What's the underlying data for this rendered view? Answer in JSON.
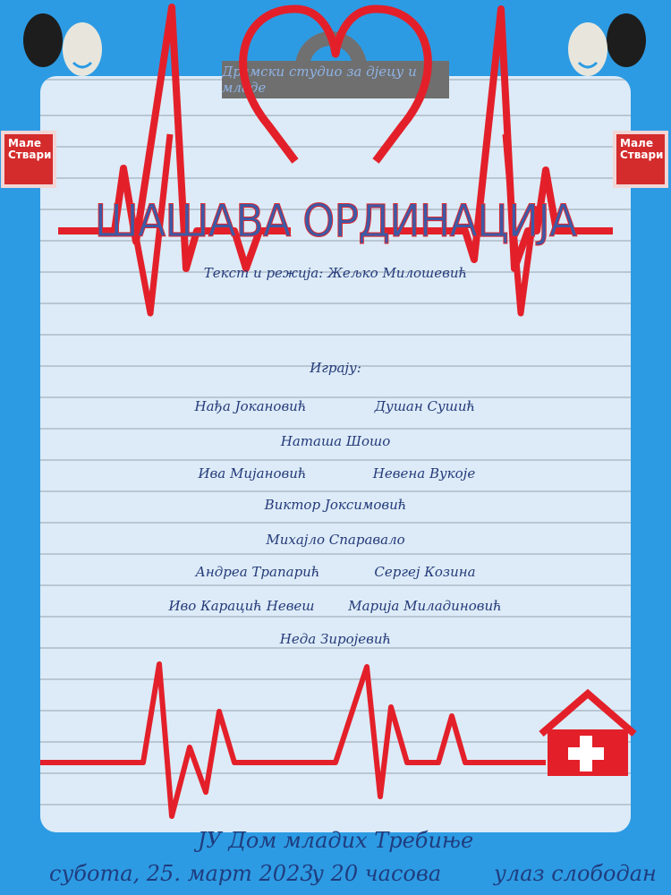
{
  "studio": "Драмски студио за дјецу и младе",
  "title": "ШАШАВА ОРДИНАЦИЈА",
  "author": "Текст и режија: Жељко Милошевић",
  "cast_heading": "Играју:",
  "cast": [
    "Нађа Јокановић",
    "Душан Сушић",
    "Наташа Шошо",
    "Ива Мијановић",
    "Невена Вукоје",
    "Виктор Јоксимовић",
    "Михајло Спаравало",
    "Андреа Трапарић",
    "Сергеј Козина",
    "Иво Карацић Невеш",
    "Марија Миладиновић",
    "Неда Зиројевић"
  ],
  "venue": "ЈУ Дом младих Требиње",
  "date": "субота, 25. март 2023.",
  "time": "у 20 часова",
  "entry": "улаз слободан",
  "logo": {
    "line1": "Мале",
    "line2": "Ствари"
  },
  "colors": {
    "background": "#2d9be4",
    "paper": "#dcebf7",
    "ecg": "#e3202a",
    "text": "#253a7a"
  },
  "icons": [
    "theatre-masks-icon",
    "heart-icon",
    "hospital-house-icon"
  ]
}
